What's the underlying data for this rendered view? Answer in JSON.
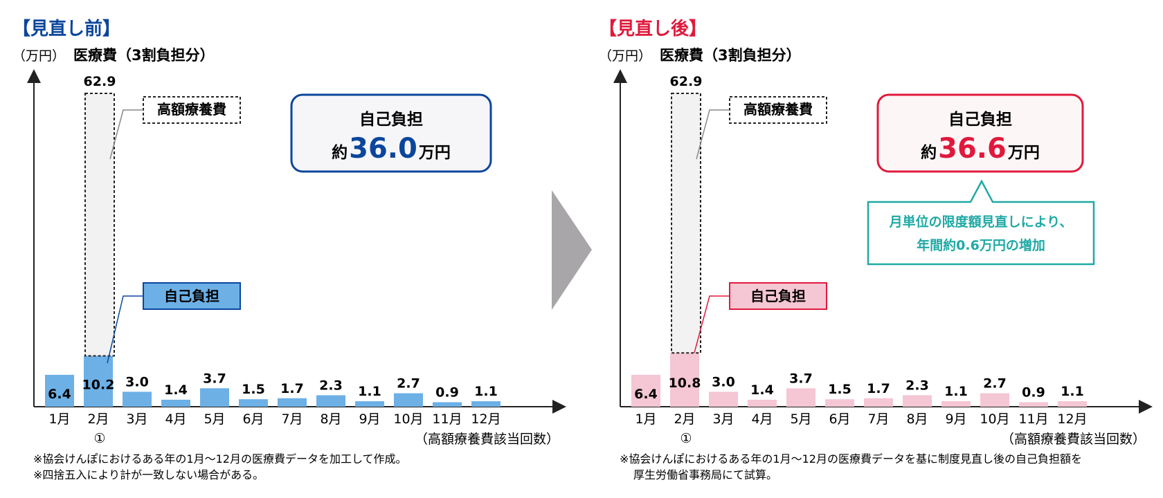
{
  "colors": {
    "blue_dark": "#0b469b",
    "blue_bar": "#6cb0e6",
    "pink_bar": "#f5c6d4",
    "red": "#e0193c",
    "teal": "#1fa9a4",
    "arrow_gray": "#a8a6a8",
    "dotted_fill": "#f2f2f2"
  },
  "arrow_icon": "triangle-right-icon",
  "panels": [
    {
      "id": "before",
      "header": "【見直し前】",
      "unit_label": "（万円）",
      "title": "医療費（3割負担分）",
      "high_cost_label": "高額療養費",
      "self_pay_label": "自己負担",
      "summary_line1": "自己負担",
      "summary_prefix": "約",
      "summary_value": "36.0",
      "summary_unit": "万円",
      "x_axis_note": "（高額療養費該当回数）",
      "marker": "①",
      "notes": [
        "※協会けんぽにおけるある年の1月～12月の医療費データを加工して作成。",
        "※四捨五入により計が一致しない場合がある。"
      ]
    },
    {
      "id": "after",
      "header": "【見直し後】",
      "unit_label": "（万円）",
      "title": "医療費（3割負担分）",
      "high_cost_label": "高額療養費",
      "self_pay_label": "自己負担",
      "summary_line1": "自己負担",
      "summary_prefix": "約",
      "summary_value": "36.6",
      "summary_unit": "万円",
      "x_axis_note": "（高額療養費該当回数）",
      "marker": "①",
      "callout_line1": "月単位の限度額見直しにより、",
      "callout_line2": "年間約0.6万円の増加",
      "notes": [
        "※協会けんぽにおけるある年の1月～12月の医療費データを基に制度見直し後の自己負担額を",
        "厚生労働省事務局にて試算。"
      ]
    }
  ],
  "chart_data": [
    {
      "type": "bar",
      "title": "医療費（3割負担分）",
      "ylabel": "（万円）",
      "xlabel": "（高額療養費該当回数）",
      "categories": [
        "1月",
        "2月",
        "3月",
        "4月",
        "5月",
        "6月",
        "7月",
        "8月",
        "9月",
        "10月",
        "11月",
        "12月"
      ],
      "series": [
        {
          "name": "自己負担",
          "values": [
            6.4,
            10.2,
            3.0,
            1.4,
            3.7,
            1.5,
            1.7,
            2.3,
            1.1,
            2.7,
            0.9,
            1.1
          ]
        }
      ],
      "value_labels": [
        "6.4",
        "10.2",
        "3.0",
        "1.4",
        "3.7",
        "1.5",
        "1.7",
        "2.3",
        "1.1",
        "2.7",
        "0.9",
        "1.1"
      ],
      "high_cost_total": {
        "category": "2月",
        "value": 62.9,
        "label": "62.9"
      },
      "ylim": [
        0,
        70
      ],
      "grid": false
    },
    {
      "type": "bar",
      "title": "医療費（3割負担分）",
      "ylabel": "（万円）",
      "xlabel": "（高額療養費該当回数）",
      "categories": [
        "1月",
        "2月",
        "3月",
        "4月",
        "5月",
        "6月",
        "7月",
        "8月",
        "9月",
        "10月",
        "11月",
        "12月"
      ],
      "series": [
        {
          "name": "自己負担",
          "values": [
            6.4,
            10.8,
            3.0,
            1.4,
            3.7,
            1.5,
            1.7,
            2.3,
            1.1,
            2.7,
            0.9,
            1.1
          ]
        }
      ],
      "value_labels": [
        "6.4",
        "10.8",
        "3.0",
        "1.4",
        "3.7",
        "1.5",
        "1.7",
        "2.3",
        "1.1",
        "2.7",
        "0.9",
        "1.1"
      ],
      "high_cost_total": {
        "category": "2月",
        "value": 62.9,
        "label": "62.9"
      },
      "ylim": [
        0,
        70
      ],
      "grid": false
    }
  ]
}
